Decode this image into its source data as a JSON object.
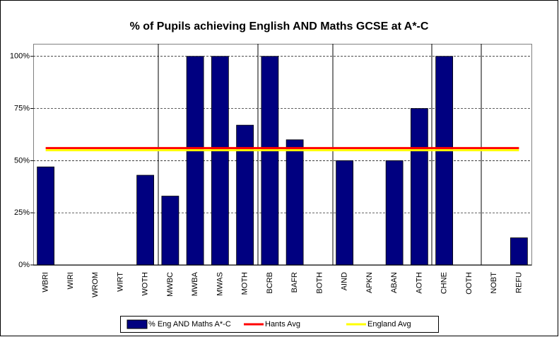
{
  "chart_data": {
    "type": "bar",
    "title": "% of Pupils achieving English AND Maths GCSE at A*-C",
    "categories": [
      "WBRI",
      "WIRI",
      "WROM",
      "WIRT",
      "WOTH",
      "MWBC",
      "MWBA",
      "MWAS",
      "MOTH",
      "BCRB",
      "BAFR",
      "BOTH",
      "AIND",
      "APKN",
      "ABAN",
      "AOTH",
      "CHNE",
      "OOTH",
      "NOBT",
      "REFU"
    ],
    "series": [
      {
        "name": "% Eng AND Maths A*-C",
        "type": "bar",
        "color": "#000080",
        "values": [
          47,
          0,
          0,
          0,
          43,
          33,
          100,
          100,
          67,
          100,
          60,
          0,
          50,
          0,
          50,
          75,
          100,
          0,
          0,
          13
        ]
      },
      {
        "name": "Hants Avg",
        "type": "line",
        "color": "#ff0000",
        "values": [
          56,
          56,
          56,
          56,
          56,
          56,
          56,
          56,
          56,
          56,
          56,
          56,
          56,
          56,
          56,
          56,
          56,
          56,
          56,
          56
        ]
      },
      {
        "name": "England Avg",
        "type": "line",
        "color": "#ffff00",
        "values": [
          55,
          55,
          55,
          55,
          55,
          55,
          55,
          55,
          55,
          55,
          55,
          55,
          55,
          55,
          55,
          55,
          55,
          55,
          55,
          55
        ]
      }
    ],
    "ylim": [
      0,
      106
    ],
    "yticks": [
      {
        "value": 0,
        "label": "0%"
      },
      {
        "value": 25,
        "label": "25%"
      },
      {
        "value": 50,
        "label": "50%"
      },
      {
        "value": 75,
        "label": "75%"
      },
      {
        "value": 100,
        "label": "100%"
      }
    ],
    "grid": true,
    "legend": "bottom"
  }
}
